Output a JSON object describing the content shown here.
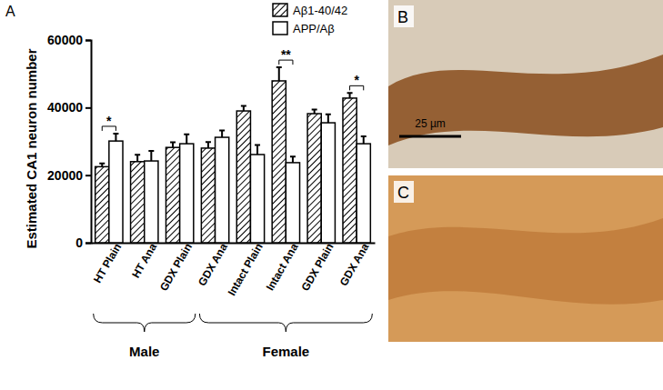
{
  "chart_data": {
    "type": "bar",
    "panel_label": "A",
    "y_label": "Estimated CA1 neuron number",
    "categories": [
      "HT Plain",
      "HT Ana",
      "GDX Plain",
      "GDX Ana",
      "Intact Plain",
      "Intact  Ana",
      "GDX Plain",
      "GDX Ana"
    ],
    "series": [
      {
        "name": "Aβ1-40/42",
        "color": "#000000",
        "line_style": "hatch",
        "values": [
          22500,
          24000,
          28200,
          28000,
          39000,
          47900,
          38200,
          42800
        ],
        "errors": [
          1000,
          2000,
          1500,
          1800,
          1500,
          4000,
          1200,
          1500
        ]
      },
      {
        "name": "APP/Aβ",
        "color": "#ffffff",
        "line_style": "solid",
        "values": [
          30100,
          24200,
          29300,
          31200,
          26100,
          23700,
          35500,
          29300
        ],
        "errors": [
          2200,
          3000,
          2800,
          2000,
          2800,
          1800,
          2500,
          2200
        ]
      }
    ],
    "ylim": [
      0,
      60000
    ],
    "yticks": [
      0,
      20000,
      40000,
      60000
    ],
    "legend": "top-right",
    "annotations": [
      {
        "category": 0,
        "text": "*"
      },
      {
        "category": 5,
        "text": "**"
      },
      {
        "category": 7,
        "text": "*"
      }
    ],
    "groups": [
      {
        "label": "Male",
        "from": 0,
        "to": 2
      },
      {
        "label": "Female",
        "from": 3,
        "to": 7
      }
    ]
  },
  "images": [
    {
      "label": "B",
      "scale_bar": "25 µm"
    },
    {
      "label": "C"
    }
  ]
}
